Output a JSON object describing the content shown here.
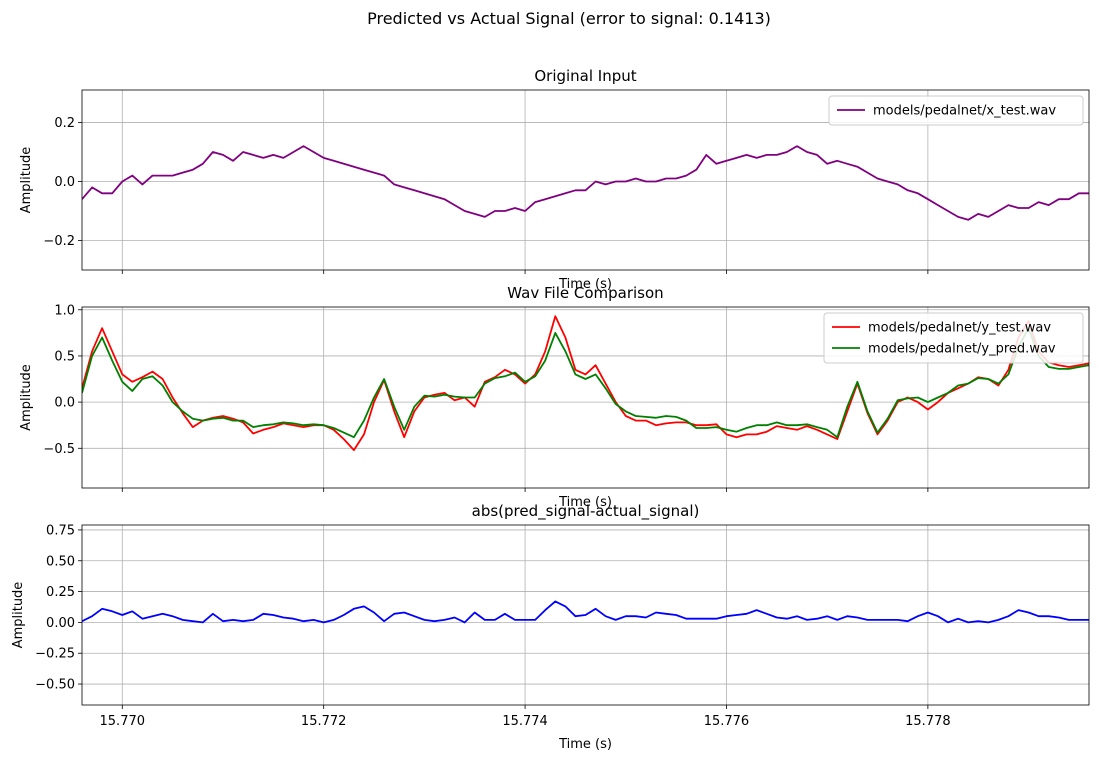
{
  "figure": {
    "suptitle": "Predicted vs Actual Signal (error to signal: 0.1413)"
  },
  "chart_data": [
    {
      "type": "line",
      "title": "Original Input",
      "xlabel": "Time (s)",
      "ylabel": "Amplitude",
      "xlim": [
        15.7696,
        15.7796
      ],
      "ylim": [
        -0.3,
        0.31
      ],
      "yticks": [
        0.2,
        0.0,
        -0.2
      ],
      "ytick_labels": [
        "0.2",
        "0.0",
        "−0.2"
      ],
      "xticks": [
        15.77,
        15.772,
        15.774,
        15.776,
        15.778
      ],
      "xtick_labels": [
        "",
        "",
        "",
        "",
        ""
      ],
      "grid": true,
      "legend_position": "upper right",
      "series": [
        {
          "name": "models/pedalnet/x_test.wav",
          "color": "#800080",
          "x": [
            15.7696,
            15.7697,
            15.7698,
            15.7699,
            15.77,
            15.7701,
            15.7702,
            15.7703,
            15.7704,
            15.7705,
            15.7706,
            15.7707,
            15.7708,
            15.7709,
            15.771,
            15.7711,
            15.7712,
            15.7713,
            15.7714,
            15.7715,
            15.7716,
            15.7717,
            15.7718,
            15.7719,
            15.772,
            15.7721,
            15.7722,
            15.7723,
            15.7724,
            15.7725,
            15.7726,
            15.7727,
            15.7728,
            15.7729,
            15.773,
            15.7731,
            15.7732,
            15.7733,
            15.7734,
            15.7735,
            15.7736,
            15.7737,
            15.7738,
            15.7739,
            15.774,
            15.7741,
            15.7742,
            15.7743,
            15.7744,
            15.7745,
            15.7746,
            15.7747,
            15.7748,
            15.7749,
            15.775,
            15.7751,
            15.7752,
            15.7753,
            15.7754,
            15.7755,
            15.7756,
            15.7757,
            15.7758,
            15.7759,
            15.776,
            15.7761,
            15.7762,
            15.7763,
            15.7764,
            15.7765,
            15.7766,
            15.7767,
            15.7768,
            15.7769,
            15.777,
            15.7771,
            15.7772,
            15.7773,
            15.7774,
            15.7775,
            15.7776,
            15.7777,
            15.7778,
            15.7779,
            15.778,
            15.7781,
            15.7782,
            15.7783,
            15.7784,
            15.7785,
            15.7786,
            15.7787,
            15.7788,
            15.7789,
            15.779,
            15.7791,
            15.7792,
            15.7793,
            15.7794,
            15.7795,
            15.7796
          ],
          "y": [
            -0.06,
            -0.02,
            -0.04,
            -0.04,
            0.0,
            0.02,
            -0.01,
            0.02,
            0.02,
            0.02,
            0.03,
            0.04,
            0.06,
            0.1,
            0.09,
            0.07,
            0.1,
            0.09,
            0.08,
            0.09,
            0.08,
            0.1,
            0.12,
            0.1,
            0.08,
            0.07,
            0.06,
            0.05,
            0.04,
            0.03,
            0.02,
            -0.01,
            -0.02,
            -0.03,
            -0.04,
            -0.05,
            -0.06,
            -0.08,
            -0.1,
            -0.11,
            -0.12,
            -0.1,
            -0.1,
            -0.09,
            -0.1,
            -0.07,
            -0.06,
            -0.05,
            -0.04,
            -0.03,
            -0.03,
            0.0,
            -0.01,
            0.0,
            0.0,
            0.01,
            0.0,
            0.0,
            0.01,
            0.01,
            0.02,
            0.04,
            0.09,
            0.06,
            0.07,
            0.08,
            0.09,
            0.08,
            0.09,
            0.09,
            0.1,
            0.12,
            0.1,
            0.09,
            0.06,
            0.07,
            0.06,
            0.05,
            0.03,
            0.01,
            0.0,
            -0.01,
            -0.03,
            -0.04,
            -0.06,
            -0.08,
            -0.1,
            -0.12,
            -0.13,
            -0.11,
            -0.12,
            -0.1,
            -0.08,
            -0.09,
            -0.09,
            -0.07,
            -0.08,
            -0.06,
            -0.06,
            -0.04,
            -0.04
          ]
        }
      ]
    },
    {
      "type": "line",
      "title": "Wav File Comparison",
      "xlabel": "Time (s)",
      "ylabel": "Amplitude",
      "xlim": [
        15.7696,
        15.7796
      ],
      "ylim": [
        -0.93,
        1.03
      ],
      "yticks": [
        1.0,
        0.5,
        0.0,
        -0.5
      ],
      "ytick_labels": [
        "1.0",
        "0.5",
        "0.0",
        "−0.5"
      ],
      "xticks": [
        15.77,
        15.772,
        15.774,
        15.776,
        15.778
      ],
      "xtick_labels": [
        "",
        "",
        "",
        "",
        ""
      ],
      "grid": true,
      "legend_position": "upper right",
      "x": [
        15.7696,
        15.7697,
        15.7698,
        15.7699,
        15.77,
        15.7701,
        15.7702,
        15.7703,
        15.7704,
        15.7705,
        15.7706,
        15.7707,
        15.7708,
        15.7709,
        15.771,
        15.7711,
        15.7712,
        15.7713,
        15.7714,
        15.7715,
        15.7716,
        15.7717,
        15.7718,
        15.7719,
        15.772,
        15.7721,
        15.7722,
        15.7723,
        15.7724,
        15.7725,
        15.7726,
        15.7727,
        15.7728,
        15.7729,
        15.773,
        15.7731,
        15.7732,
        15.7733,
        15.7734,
        15.7735,
        15.7736,
        15.7737,
        15.7738,
        15.7739,
        15.774,
        15.7741,
        15.7742,
        15.7743,
        15.7744,
        15.7745,
        15.7746,
        15.7747,
        15.7748,
        15.7749,
        15.775,
        15.7751,
        15.7752,
        15.7753,
        15.7754,
        15.7755,
        15.7756,
        15.7757,
        15.7758,
        15.7759,
        15.776,
        15.7761,
        15.7762,
        15.7763,
        15.7764,
        15.7765,
        15.7766,
        15.7767,
        15.7768,
        15.7769,
        15.777,
        15.7771,
        15.7772,
        15.7773,
        15.7774,
        15.7775,
        15.7776,
        15.7777,
        15.7778,
        15.7779,
        15.778,
        15.7781,
        15.7782,
        15.7783,
        15.7784,
        15.7785,
        15.7786,
        15.7787,
        15.7788,
        15.7789,
        15.779,
        15.7791,
        15.7792,
        15.7793,
        15.7794,
        15.7795,
        15.7796
      ],
      "series": [
        {
          "name": "models/pedalnet/y_test.wav",
          "color": "#ff0000",
          "y": [
            0.15,
            0.55,
            0.8,
            0.55,
            0.3,
            0.22,
            0.27,
            0.33,
            0.25,
            0.05,
            -0.12,
            -0.27,
            -0.2,
            -0.17,
            -0.15,
            -0.18,
            -0.22,
            -0.34,
            -0.3,
            -0.27,
            -0.23,
            -0.25,
            -0.27,
            -0.25,
            -0.25,
            -0.3,
            -0.4,
            -0.52,
            -0.35,
            0.0,
            0.24,
            -0.1,
            -0.38,
            -0.1,
            0.05,
            0.08,
            0.1,
            0.02,
            0.05,
            -0.05,
            0.22,
            0.27,
            0.35,
            0.3,
            0.2,
            0.3,
            0.55,
            0.93,
            0.7,
            0.35,
            0.3,
            0.4,
            0.2,
            0.0,
            -0.15,
            -0.2,
            -0.2,
            -0.25,
            -0.23,
            -0.22,
            -0.22,
            -0.25,
            -0.25,
            -0.24,
            -0.35,
            -0.38,
            -0.35,
            -0.35,
            -0.32,
            -0.26,
            -0.28,
            -0.3,
            -0.26,
            -0.3,
            -0.35,
            -0.4,
            -0.1,
            0.2,
            -0.12,
            -0.35,
            -0.2,
            0.0,
            0.05,
            0.0,
            -0.08,
            0.0,
            0.1,
            0.15,
            0.2,
            0.27,
            0.25,
            0.18,
            0.35,
            0.7,
            0.88,
            0.55,
            0.43,
            0.4,
            0.38,
            0.4,
            0.42
          ]
        },
        {
          "name": "models/pedalnet/y_pred.wav",
          "color": "#008000",
          "y": [
            0.1,
            0.5,
            0.7,
            0.45,
            0.22,
            0.12,
            0.25,
            0.28,
            0.18,
            0.0,
            -0.1,
            -0.18,
            -0.2,
            -0.18,
            -0.17,
            -0.2,
            -0.2,
            -0.27,
            -0.25,
            -0.24,
            -0.22,
            -0.23,
            -0.25,
            -0.24,
            -0.25,
            -0.28,
            -0.33,
            -0.38,
            -0.2,
            0.05,
            0.25,
            -0.05,
            -0.3,
            -0.05,
            0.07,
            0.06,
            0.08,
            0.06,
            0.05,
            0.05,
            0.2,
            0.26,
            0.28,
            0.32,
            0.22,
            0.28,
            0.45,
            0.75,
            0.55,
            0.3,
            0.25,
            0.3,
            0.15,
            -0.02,
            -0.1,
            -0.15,
            -0.16,
            -0.17,
            -0.15,
            -0.16,
            -0.2,
            -0.28,
            -0.28,
            -0.27,
            -0.3,
            -0.32,
            -0.28,
            -0.25,
            -0.25,
            -0.22,
            -0.25,
            -0.25,
            -0.24,
            -0.27,
            -0.3,
            -0.38,
            -0.05,
            0.22,
            -0.1,
            -0.33,
            -0.18,
            0.02,
            0.04,
            0.05,
            0.0,
            0.05,
            0.1,
            0.18,
            0.2,
            0.26,
            0.25,
            0.2,
            0.3,
            0.6,
            0.8,
            0.5,
            0.38,
            0.36,
            0.36,
            0.38,
            0.4
          ]
        }
      ]
    },
    {
      "type": "line",
      "title": "abs(pred_signal-actual_signal)",
      "xlabel": "Time (s)",
      "ylabel": "Amplitude",
      "xlim": [
        15.7696,
        15.7796
      ],
      "ylim": [
        -0.67,
        0.79
      ],
      "yticks": [
        0.75,
        0.5,
        0.25,
        0.0,
        -0.25,
        -0.5
      ],
      "ytick_labels": [
        "0.75",
        "0.50",
        "0.25",
        "0.00",
        "−0.25",
        "−0.50"
      ],
      "xticks": [
        15.77,
        15.772,
        15.774,
        15.776,
        15.778
      ],
      "xtick_labels": [
        "15.770",
        "15.772",
        "15.774",
        "15.776",
        "15.778"
      ],
      "grid": true,
      "series": [
        {
          "color": "#0000ff",
          "x": [
            15.7696,
            15.7697,
            15.7698,
            15.7699,
            15.77,
            15.7701,
            15.7702,
            15.7703,
            15.7704,
            15.7705,
            15.7706,
            15.7707,
            15.7708,
            15.7709,
            15.771,
            15.7711,
            15.7712,
            15.7713,
            15.7714,
            15.7715,
            15.7716,
            15.7717,
            15.7718,
            15.7719,
            15.772,
            15.7721,
            15.7722,
            15.7723,
            15.7724,
            15.7725,
            15.7726,
            15.7727,
            15.7728,
            15.7729,
            15.773,
            15.7731,
            15.7732,
            15.7733,
            15.7734,
            15.7735,
            15.7736,
            15.7737,
            15.7738,
            15.7739,
            15.774,
            15.7741,
            15.7742,
            15.7743,
            15.7744,
            15.7745,
            15.7746,
            15.7747,
            15.7748,
            15.7749,
            15.775,
            15.7751,
            15.7752,
            15.7753,
            15.7754,
            15.7755,
            15.7756,
            15.7757,
            15.7758,
            15.7759,
            15.776,
            15.7761,
            15.7762,
            15.7763,
            15.7764,
            15.7765,
            15.7766,
            15.7767,
            15.7768,
            15.7769,
            15.777,
            15.7771,
            15.7772,
            15.7773,
            15.7774,
            15.7775,
            15.7776,
            15.7777,
            15.7778,
            15.7779,
            15.778,
            15.7781,
            15.7782,
            15.7783,
            15.7784,
            15.7785,
            15.7786,
            15.7787,
            15.7788,
            15.7789,
            15.779,
            15.7791,
            15.7792,
            15.7793,
            15.7794,
            15.7795,
            15.7796
          ],
          "y": [
            0.01,
            0.05,
            0.11,
            0.09,
            0.06,
            0.09,
            0.03,
            0.05,
            0.07,
            0.05,
            0.02,
            0.01,
            0.0,
            0.07,
            0.01,
            0.02,
            0.01,
            0.02,
            0.07,
            0.06,
            0.04,
            0.03,
            0.01,
            0.02,
            0.0,
            0.02,
            0.06,
            0.11,
            0.13,
            0.08,
            0.01,
            0.07,
            0.08,
            0.05,
            0.02,
            0.01,
            0.02,
            0.04,
            0.0,
            0.08,
            0.02,
            0.02,
            0.07,
            0.02,
            0.02,
            0.02,
            0.1,
            0.17,
            0.13,
            0.05,
            0.06,
            0.11,
            0.05,
            0.02,
            0.05,
            0.05,
            0.04,
            0.08,
            0.07,
            0.06,
            0.03,
            0.03,
            0.03,
            0.03,
            0.05,
            0.06,
            0.07,
            0.1,
            0.07,
            0.04,
            0.03,
            0.05,
            0.02,
            0.03,
            0.05,
            0.02,
            0.05,
            0.04,
            0.02,
            0.02,
            0.02,
            0.02,
            0.01,
            0.05,
            0.08,
            0.05,
            0.0,
            0.03,
            0.0,
            0.01,
            0.0,
            0.02,
            0.05,
            0.1,
            0.08,
            0.05,
            0.05,
            0.04,
            0.02,
            0.02,
            0.02
          ]
        }
      ]
    }
  ]
}
